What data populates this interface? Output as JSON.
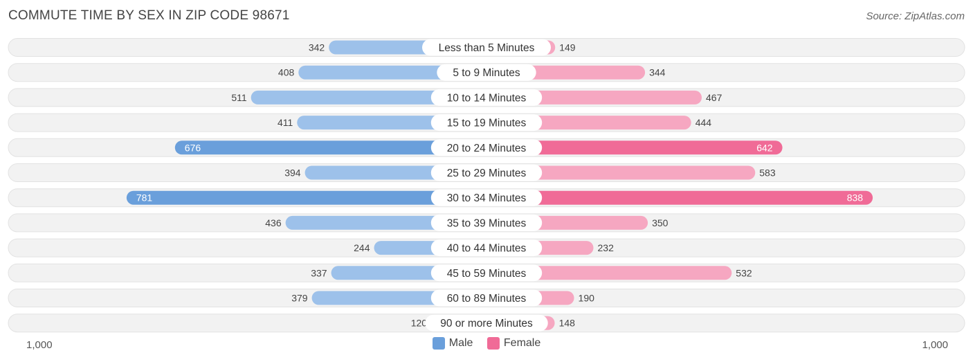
{
  "title": "COMMUTE TIME BY SEX IN ZIP CODE 98671",
  "source": "Source: ZipAtlas.com",
  "colors": {
    "male_light": "#9dc1ea",
    "male_dark": "#6a9fdb",
    "female_light": "#f6a7c1",
    "female_dark": "#f06b97",
    "row_bg": "#f2f2f2"
  },
  "chart_data": {
    "type": "bar",
    "orientation": "horizontal-diverging",
    "categories": [
      "Less than 5 Minutes",
      "5 to 9 Minutes",
      "10 to 14 Minutes",
      "15 to 19 Minutes",
      "20 to 24 Minutes",
      "25 to 29 Minutes",
      "30 to 34 Minutes",
      "35 to 39 Minutes",
      "40 to 44 Minutes",
      "45 to 59 Minutes",
      "60 to 89 Minutes",
      "90 or more Minutes"
    ],
    "series": [
      {
        "name": "Male",
        "values": [
          342,
          408,
          511,
          411,
          676,
          394,
          781,
          436,
          244,
          337,
          379,
          120
        ]
      },
      {
        "name": "Female",
        "values": [
          149,
          344,
          467,
          444,
          642,
          583,
          838,
          350,
          232,
          532,
          190,
          148
        ]
      }
    ],
    "axis_min_label": "1,000",
    "axis_max_label": "1,000",
    "xlim": [
      -1000,
      1000
    ],
    "legend_position": "bottom-center"
  }
}
